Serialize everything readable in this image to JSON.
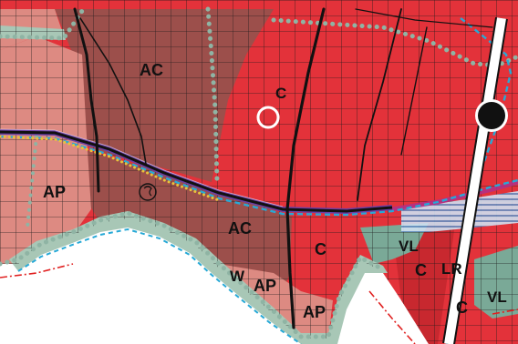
{
  "map": {
    "zone_labels": {
      "ac_north": "AC",
      "c_north": "C",
      "ap_west": "AP",
      "ac_south": "AC",
      "c_center": "C",
      "vl_center": "VL",
      "w": "W",
      "ap_south_1": "AP",
      "ap_south_2": "AP",
      "c_southeast_1": "C",
      "lr": "LR",
      "c_southeast_2": "C",
      "vl_east": "VL"
    },
    "colors": {
      "zone_c": "#e3323a",
      "zone_c_dark": "#c8282f",
      "zone_ac": "#9c4f4b",
      "zone_ap": "#dd8a82",
      "zone_vl": "#7aa997",
      "zone_green_band": "#a8c7b6",
      "zone_lr_stripe": "#ffffff",
      "grid": "#1a1a1a",
      "road": "#111111",
      "boundary_dots": "#8fb4a4",
      "cyan_dash": "#27a9d6",
      "purple_rail": "#6b3fa3",
      "yellow_dots": "#e9c23a",
      "water_stripes": "#3d6fb0",
      "magenta_band": "#b0308a",
      "red_dashdot": "#e02020"
    },
    "symbols": {
      "white_circle": "white-ring-symbol",
      "black_circle": "black-dot-symbol",
      "small_circle": "numbered-circle-symbol"
    }
  }
}
